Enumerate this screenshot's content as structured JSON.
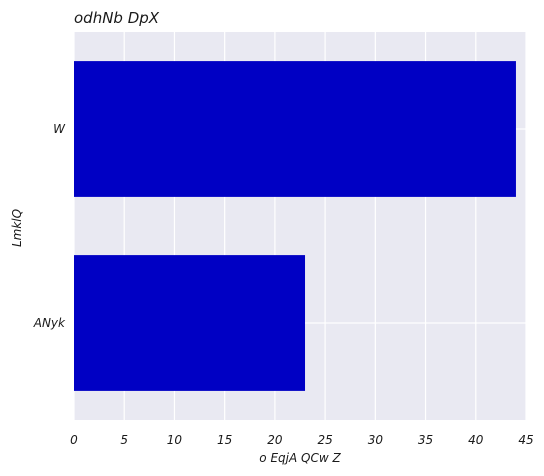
{
  "chart_data": {
    "type": "bar",
    "orientation": "horizontal",
    "title": "odhNb DpX",
    "xlabel": "o EqjA QCw Z",
    "ylabel": "LmklQ",
    "categories": [
      "W",
      "ANyk"
    ],
    "values": [
      44,
      23
    ],
    "xlim": [
      0,
      45
    ],
    "xticks": [
      "0",
      "5",
      "10",
      "15",
      "20",
      "25",
      "30",
      "35",
      "40",
      "45"
    ],
    "grid": true,
    "bar_color": "#0000c4",
    "background_color": "#e9e9f2"
  }
}
